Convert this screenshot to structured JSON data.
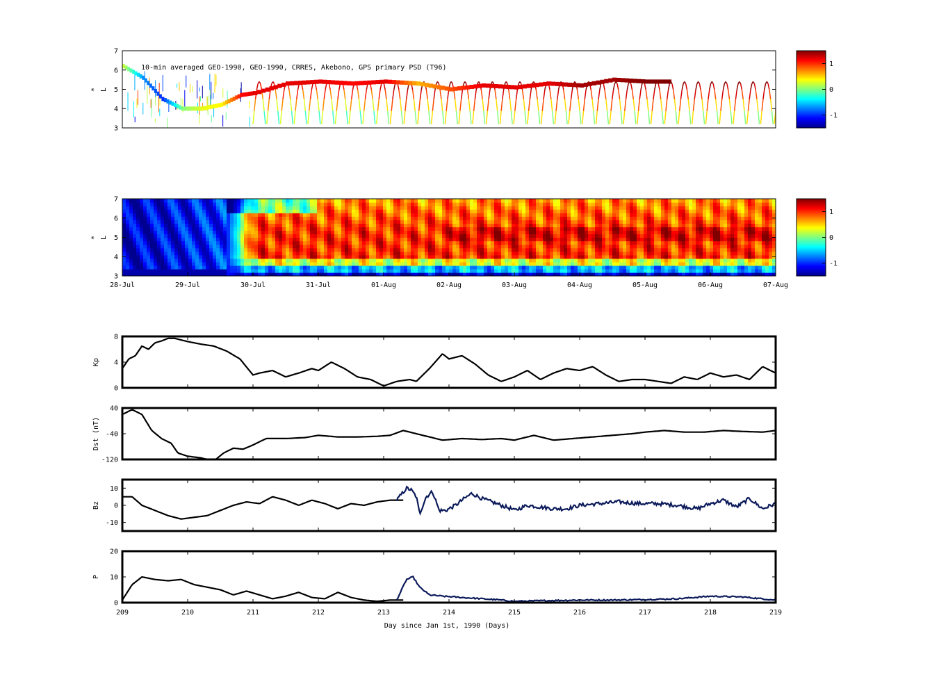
{
  "colors": {
    "line": "#000000",
    "solar_wind_line": "#0b1a5a",
    "jet": [
      "#00008f",
      "#0000ff",
      "#0080ff",
      "#00ffff",
      "#80ff80",
      "#ffff00",
      "#ff8000",
      "#ff0000",
      "#800000"
    ]
  },
  "colorbar": {
    "ticks": [
      1,
      0,
      -1
    ],
    "range": [
      -1.5,
      1.5
    ]
  },
  "chart_data": [
    {
      "type": "scatter",
      "panel": "observed_psd",
      "annotation": "10-min averaged GEO-1990, GEO-1990, CRRES, Akebono, GPS  primary PSD (T96)",
      "ylabel_main": "L",
      "ylabel_super": "*",
      "ylim": [
        3,
        7
      ],
      "yticks": [
        3,
        4,
        5,
        6,
        7
      ],
      "xlim": [
        209,
        219
      ],
      "colormap": "jet",
      "geo_track": {
        "x": [
          209.0,
          209.3,
          209.6,
          209.9,
          210.2,
          210.5,
          210.8,
          211.0,
          211.5,
          212.0,
          212.5,
          213.0,
          213.5,
          214.0,
          214.5,
          215.0,
          215.5,
          216.0,
          216.5,
          217.0,
          217.4
        ],
        "L": [
          6.2,
          5.6,
          4.5,
          4.0,
          4.0,
          4.2,
          4.7,
          4.8,
          5.3,
          5.4,
          5.3,
          5.4,
          5.3,
          5.0,
          5.2,
          5.1,
          5.3,
          5.2,
          5.5,
          5.4,
          5.4
        ],
        "value": [
          0.2,
          -0.7,
          -1.0,
          0.0,
          0.3,
          0.4,
          1.1,
          1.2,
          1.2,
          1.2,
          1.1,
          1.2,
          0.6,
          0.9,
          1.2,
          1.2,
          1.2,
          1.4,
          1.4,
          1.5,
          1.5
        ]
      }
    },
    {
      "type": "heatmap",
      "panel": "reanalysis_psd",
      "ylabel_main": "L",
      "ylabel_super": "*",
      "ylim": [
        3,
        7
      ],
      "yticks": [
        3,
        4,
        5,
        6,
        7
      ],
      "xlim": [
        209,
        219
      ],
      "colormap": "jet",
      "x_date_ticks": [
        "28-Jul",
        "29-Jul",
        "30-Jul",
        "31-Jul",
        "01-Aug",
        "02-Aug",
        "03-Aug",
        "04-Aug",
        "05-Aug",
        "06-Aug",
        "07-Aug"
      ]
    },
    {
      "type": "line",
      "panel": "kp",
      "ylabel": "Kp",
      "ylim": [
        0,
        8
      ],
      "yticks": [
        0,
        4,
        8
      ],
      "x": [
        209.0,
        209.1,
        209.2,
        209.3,
        209.4,
        209.5,
        209.6,
        209.7,
        209.8,
        210.0,
        210.2,
        210.4,
        210.6,
        210.8,
        211.0,
        211.1,
        211.3,
        211.5,
        211.7,
        211.9,
        212.0,
        212.2,
        212.4,
        212.6,
        212.8,
        213.0,
        213.2,
        213.4,
        213.5,
        213.7,
        213.9,
        214.0,
        214.2,
        214.4,
        214.6,
        214.8,
        215.0,
        215.2,
        215.4,
        215.6,
        215.8,
        216.0,
        216.2,
        216.4,
        216.6,
        216.8,
        217.0,
        217.2,
        217.4,
        217.6,
        217.8,
        218.0,
        218.2,
        218.4,
        218.6,
        218.8,
        219.0
      ],
      "y": [
        3.0,
        4.5,
        5.0,
        6.5,
        6.0,
        7.0,
        7.3,
        7.7,
        7.7,
        7.2,
        6.8,
        6.5,
        5.7,
        4.5,
        2.0,
        2.3,
        2.7,
        1.7,
        2.3,
        3.0,
        2.7,
        4.0,
        3.0,
        1.7,
        1.3,
        0.3,
        1.0,
        1.3,
        1.0,
        3.0,
        5.3,
        4.5,
        5.0,
        3.7,
        2.0,
        1.0,
        1.7,
        2.7,
        1.3,
        2.3,
        3.0,
        2.7,
        3.3,
        2.0,
        1.0,
        1.3,
        1.3,
        1.0,
        0.7,
        1.7,
        1.3,
        2.3,
        1.7,
        2.0,
        1.3,
        3.3,
        2.3
      ]
    },
    {
      "type": "line",
      "panel": "dst",
      "ylabel": "Dst (nT)",
      "ylim": [
        -120,
        40
      ],
      "yticks": [
        -120,
        -40,
        40
      ],
      "x": [
        209.0,
        209.15,
        209.3,
        209.45,
        209.6,
        209.75,
        209.85,
        210.0,
        210.2,
        210.4,
        210.55,
        210.7,
        210.85,
        211.0,
        211.2,
        211.5,
        211.8,
        212.0,
        212.3,
        212.6,
        212.9,
        213.1,
        213.3,
        213.6,
        213.9,
        214.2,
        214.5,
        214.8,
        215.0,
        215.3,
        215.6,
        215.9,
        216.2,
        216.5,
        216.8,
        217.0,
        217.3,
        217.6,
        217.9,
        218.2,
        218.5,
        218.8,
        219.0
      ],
      "y": [
        20,
        35,
        20,
        -30,
        -55,
        -70,
        -100,
        -110,
        -115,
        -125,
        -100,
        -85,
        -88,
        -75,
        -55,
        -55,
        -52,
        -45,
        -50,
        -50,
        -48,
        -45,
        -30,
        -45,
        -60,
        -55,
        -58,
        -55,
        -60,
        -45,
        -60,
        -55,
        -50,
        -45,
        -40,
        -35,
        -30,
        -35,
        -35,
        -30,
        -33,
        -35,
        -30
      ]
    },
    {
      "type": "line",
      "panel": "bz",
      "ylabel": "Bz",
      "ylim": [
        -15,
        15
      ],
      "yticks": [
        -10,
        0,
        10
      ],
      "x": [
        209.0,
        209.15,
        209.3,
        209.5,
        209.7,
        209.9,
        210.1,
        210.3,
        210.5,
        210.7,
        210.9,
        211.1,
        211.3,
        211.5,
        211.7,
        211.9,
        212.1,
        212.3,
        212.5,
        212.7,
        212.9,
        213.1,
        213.3
      ],
      "y": [
        5,
        5,
        0,
        -3,
        -6,
        -8,
        -7,
        -6,
        -3,
        0,
        2,
        1,
        5,
        3,
        0,
        3,
        1,
        -2,
        1,
        0,
        2,
        3,
        3
      ],
      "series_b": {
        "x": [
          213.2,
          213.35,
          213.42,
          213.5,
          213.55,
          213.65,
          213.75,
          213.85,
          213.95,
          214.1,
          214.2,
          214.35,
          214.5,
          214.65,
          214.8,
          214.95,
          215.0,
          215.2,
          215.4,
          215.6,
          215.8,
          216.0,
          216.3,
          216.6,
          216.9,
          217.2,
          217.5,
          217.8,
          218.0,
          218.2,
          218.4,
          218.6,
          218.8,
          219.0
        ],
        "y": [
          3,
          10,
          9,
          5,
          -5,
          5,
          8,
          -3,
          -3,
          0,
          3,
          7,
          4,
          2,
          0,
          -2,
          -3,
          0,
          -1,
          -2,
          -2,
          0,
          1,
          2,
          1,
          1,
          0,
          -2,
          1,
          3,
          -1,
          4,
          -2,
          1
        ]
      }
    },
    {
      "type": "line",
      "panel": "pressure",
      "ylabel": "P",
      "ylim": [
        0,
        20
      ],
      "yticks": [
        0,
        10,
        20
      ],
      "x": [
        209.0,
        209.15,
        209.3,
        209.5,
        209.7,
        209.9,
        210.1,
        210.3,
        210.5,
        210.7,
        210.9,
        211.1,
        211.3,
        211.5,
        211.7,
        211.9,
        212.1,
        212.3,
        212.5,
        212.7,
        212.9,
        213.1,
        213.3
      ],
      "y": [
        1,
        7,
        10,
        9,
        8.5,
        9,
        7,
        6,
        5,
        3,
        4.5,
        3,
        1.5,
        2.5,
        4,
        2,
        1.5,
        4,
        2,
        1,
        0.5,
        1,
        1
      ],
      "xticks": [
        209,
        210,
        211,
        212,
        213,
        214,
        215,
        216,
        217,
        218,
        219
      ],
      "xlabel": "Day since Jan 1st, 1990 (Days)",
      "series_b": {
        "x": [
          213.2,
          213.35,
          213.45,
          213.55,
          213.7,
          213.9,
          214.2,
          214.5,
          214.8,
          215.0,
          215.5,
          216.0,
          216.5,
          217.0,
          217.5,
          218.0,
          218.5,
          219.0
        ],
        "y": [
          1,
          9,
          10,
          6,
          3,
          2.5,
          2,
          1.5,
          1,
          0.5,
          0.8,
          1,
          1,
          1.2,
          1.5,
          2.5,
          2.2,
          1
        ]
      }
    }
  ]
}
